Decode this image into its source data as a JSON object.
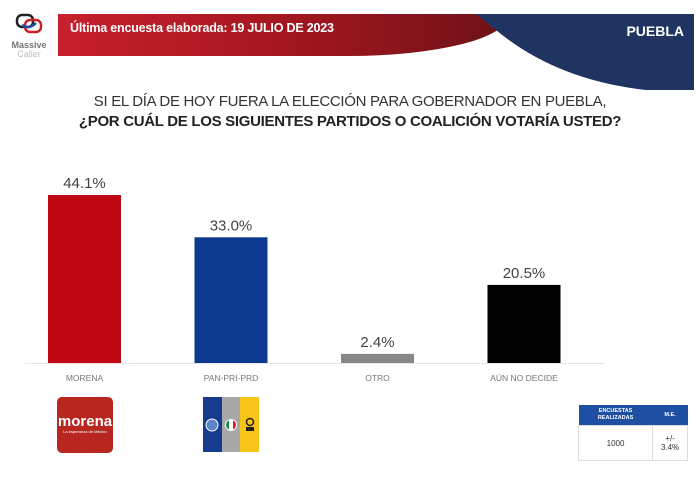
{
  "header": {
    "logo_line1": "Massive",
    "logo_line2": "Caller",
    "survey_date": "Última encuesta elaborada: 19 JULIO  DE 2023",
    "region": "PUEBLA"
  },
  "question": {
    "line1": "SI EL DÍA DE HOY FUERA LA ELECCIÓN PARA GOBERNADOR EN PUEBLA,",
    "line2": "¿POR CUÁL DE LOS SIGUIENTES PARTIDOS O COALICIÓN VOTARÍA USTED?"
  },
  "colors": {
    "header_red": "#c8202c",
    "header_blue": "#1f3461",
    "morena": "#c00914",
    "coalition": "#0d3a8e",
    "other": "#878787",
    "undecided": "#000000"
  },
  "chart_data": {
    "type": "bar",
    "title": "¿Por cuál de los siguientes partidos o coalición votaría usted?",
    "xlabel": "",
    "ylabel": "",
    "ylim": [
      0,
      50
    ],
    "grid": false,
    "categories": [
      "MORENA",
      "PAN-PRI-PRD",
      "OTRO",
      "AÚN NO DECIDE"
    ],
    "values": [
      44.1,
      33.0,
      2.4,
      20.5
    ],
    "labels": [
      "44.1%",
      "33.0%",
      "2.4%",
      "20.5%"
    ],
    "colors": [
      "#c00914",
      "#0d3a8e",
      "#878787",
      "#000000"
    ]
  },
  "party_logos": {
    "morena_name": "morena",
    "morena_tagline": "La esperanza de México",
    "coalition_parties": [
      "PAN",
      "PRI",
      "PRD"
    ]
  },
  "stats_table": {
    "header_surveys": "ENCUESTAS REALIZADAS",
    "header_margin": "M.E.",
    "surveys": "1000",
    "margin": "+/- 3.4%"
  }
}
